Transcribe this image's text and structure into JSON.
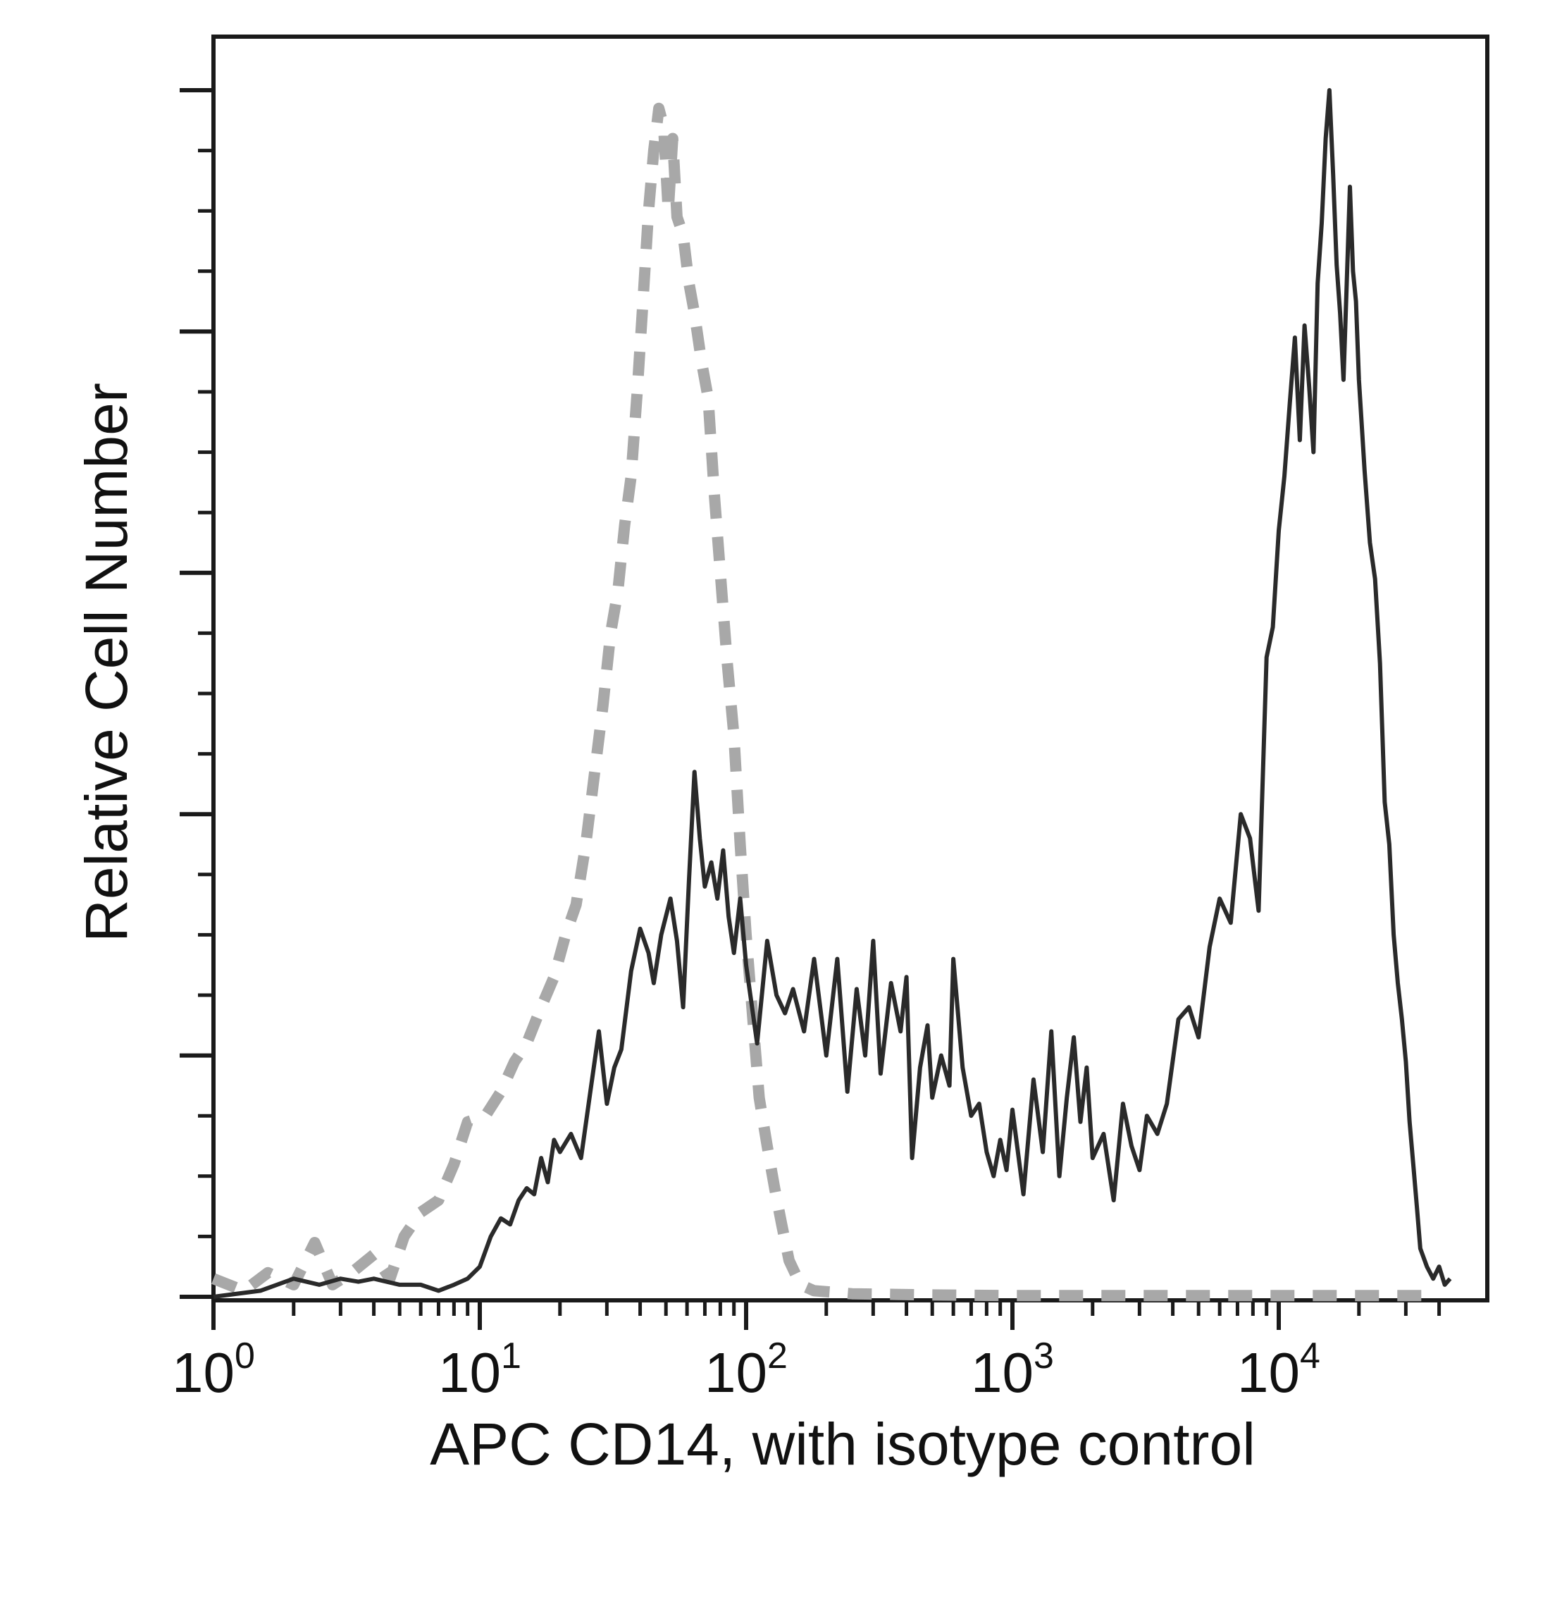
{
  "chart_data": {
    "type": "line",
    "title": "",
    "xlabel": "APC CD14, with isotype control",
    "ylabel": "Relative Cell Number",
    "x_scale": "log",
    "xlim": [
      1,
      45000
    ],
    "ylim": [
      0,
      21
    ],
    "x_ticks": [
      {
        "base": "10",
        "exp": "0",
        "value": 1
      },
      {
        "base": "10",
        "exp": "1",
        "value": 10
      },
      {
        "base": "10",
        "exp": "2",
        "value": 100
      },
      {
        "base": "10",
        "exp": "3",
        "value": 1000
      },
      {
        "base": "10",
        "exp": "4",
        "value": 10000
      }
    ],
    "y_ticks_labeled": false,
    "grid": false,
    "legend": "none",
    "series": [
      {
        "style": "dashed",
        "color": "#a8a8a8",
        "points": [
          [
            1.0,
            0.3
          ],
          [
            1.3,
            0.1
          ],
          [
            1.6,
            0.4
          ],
          [
            2.0,
            0.2
          ],
          [
            2.4,
            0.9
          ],
          [
            2.8,
            0.2
          ],
          [
            3.3,
            0.4
          ],
          [
            4.0,
            0.7
          ],
          [
            4.6,
            0.3
          ],
          [
            5.2,
            1.0
          ],
          [
            6.0,
            1.4
          ],
          [
            7.0,
            1.6
          ],
          [
            8.0,
            2.2
          ],
          [
            9.0,
            2.9
          ],
          [
            10.5,
            3.0
          ],
          [
            12.0,
            3.4
          ],
          [
            13.5,
            3.9
          ],
          [
            15.0,
            4.2
          ],
          [
            17.0,
            4.8
          ],
          [
            19.0,
            5.3
          ],
          [
            21.0,
            6.0
          ],
          [
            23.0,
            6.5
          ],
          [
            25.0,
            7.5
          ],
          [
            27.0,
            8.7
          ],
          [
            29.0,
            9.8
          ],
          [
            31.0,
            11.0
          ],
          [
            33.0,
            11.7
          ],
          [
            35.0,
            12.8
          ],
          [
            37.0,
            13.6
          ],
          [
            39.0,
            15.0
          ],
          [
            41.0,
            16.5
          ],
          [
            43.0,
            18.0
          ],
          [
            45.0,
            19.0
          ],
          [
            47.0,
            19.7
          ],
          [
            49.0,
            19.4
          ],
          [
            51.0,
            18.0
          ],
          [
            53.0,
            19.2
          ],
          [
            55.0,
            17.9
          ],
          [
            58.0,
            17.6
          ],
          [
            61.0,
            16.8
          ],
          [
            64.0,
            16.3
          ],
          [
            68.0,
            15.5
          ],
          [
            72.0,
            14.9
          ],
          [
            76.0,
            13.3
          ],
          [
            80.0,
            12.0
          ],
          [
            85.0,
            10.5
          ],
          [
            90.0,
            9.3
          ],
          [
            95.0,
            7.5
          ],
          [
            100.0,
            6.0
          ],
          [
            106.0,
            4.6
          ],
          [
            112.0,
            3.3
          ],
          [
            120.0,
            2.5
          ],
          [
            128.0,
            1.8
          ],
          [
            136.0,
            1.2
          ],
          [
            145.0,
            0.6
          ],
          [
            160.0,
            0.2
          ],
          [
            180.0,
            0.1
          ],
          [
            250.0,
            0.05
          ],
          [
            500.0,
            0.03
          ],
          [
            1000.0,
            0.02
          ],
          [
            3000.0,
            0.02
          ],
          [
            10000.0,
            0.02
          ],
          [
            40000.0,
            0.02
          ]
        ]
      },
      {
        "style": "solid",
        "color": "#2a2a2a",
        "points": [
          [
            1.0,
            0.0
          ],
          [
            1.5,
            0.1
          ],
          [
            2.0,
            0.3
          ],
          [
            2.5,
            0.2
          ],
          [
            3.0,
            0.3
          ],
          [
            3.5,
            0.25
          ],
          [
            4.0,
            0.3
          ],
          [
            5.0,
            0.2
          ],
          [
            6.0,
            0.2
          ],
          [
            7.0,
            0.1
          ],
          [
            8.0,
            0.2
          ],
          [
            9.0,
            0.3
          ],
          [
            10.0,
            0.5
          ],
          [
            11.0,
            1.0
          ],
          [
            12.0,
            1.3
          ],
          [
            13.0,
            1.2
          ],
          [
            14.0,
            1.6
          ],
          [
            15.0,
            1.8
          ],
          [
            16.0,
            1.7
          ],
          [
            17.0,
            2.3
          ],
          [
            18.0,
            1.9
          ],
          [
            19.0,
            2.6
          ],
          [
            20.0,
            2.4
          ],
          [
            22.0,
            2.7
          ],
          [
            24.0,
            2.3
          ],
          [
            26.0,
            3.4
          ],
          [
            28.0,
            4.4
          ],
          [
            30.0,
            3.2
          ],
          [
            32.0,
            3.8
          ],
          [
            34.0,
            4.1
          ],
          [
            37.0,
            5.4
          ],
          [
            40.0,
            6.1
          ],
          [
            43.0,
            5.7
          ],
          [
            45.0,
            5.2
          ],
          [
            48.0,
            6.0
          ],
          [
            52.0,
            6.6
          ],
          [
            55.0,
            5.9
          ],
          [
            58.0,
            4.8
          ],
          [
            61.0,
            6.9
          ],
          [
            64.0,
            8.7
          ],
          [
            67.0,
            7.6
          ],
          [
            70.0,
            6.8
          ],
          [
            74.0,
            7.2
          ],
          [
            78.0,
            6.6
          ],
          [
            82.0,
            7.4
          ],
          [
            86.0,
            6.3
          ],
          [
            90.0,
            5.7
          ],
          [
            95.0,
            6.6
          ],
          [
            100.0,
            5.5
          ],
          [
            110.0,
            4.2
          ],
          [
            120.0,
            5.9
          ],
          [
            130.0,
            5.0
          ],
          [
            140.0,
            4.7
          ],
          [
            150.0,
            5.1
          ],
          [
            165.0,
            4.4
          ],
          [
            180.0,
            5.6
          ],
          [
            200.0,
            4.0
          ],
          [
            220.0,
            5.6
          ],
          [
            240.0,
            3.4
          ],
          [
            260.0,
            5.1
          ],
          [
            280.0,
            4.0
          ],
          [
            300.0,
            5.9
          ],
          [
            320.0,
            3.7
          ],
          [
            350.0,
            5.2
          ],
          [
            380.0,
            4.4
          ],
          [
            400.0,
            5.3
          ],
          [
            420.0,
            2.3
          ],
          [
            450.0,
            3.8
          ],
          [
            480.0,
            4.5
          ],
          [
            500.0,
            3.3
          ],
          [
            540.0,
            4.0
          ],
          [
            580.0,
            3.5
          ],
          [
            600.0,
            5.6
          ],
          [
            650.0,
            3.8
          ],
          [
            700.0,
            3.0
          ],
          [
            750.0,
            3.2
          ],
          [
            800.0,
            2.4
          ],
          [
            850.0,
            2.0
          ],
          [
            900.0,
            2.6
          ],
          [
            950.0,
            2.1
          ],
          [
            1000.0,
            3.1
          ],
          [
            1100.0,
            1.7
          ],
          [
            1200.0,
            3.6
          ],
          [
            1300.0,
            2.4
          ],
          [
            1400.0,
            4.4
          ],
          [
            1500.0,
            2.0
          ],
          [
            1600.0,
            3.3
          ],
          [
            1700.0,
            4.3
          ],
          [
            1800.0,
            2.9
          ],
          [
            1900.0,
            3.8
          ],
          [
            2000.0,
            2.3
          ],
          [
            2200.0,
            2.7
          ],
          [
            2400.0,
            1.6
          ],
          [
            2600.0,
            3.2
          ],
          [
            2800.0,
            2.5
          ],
          [
            3000.0,
            2.1
          ],
          [
            3200.0,
            3.0
          ],
          [
            3500.0,
            2.7
          ],
          [
            3800.0,
            3.2
          ],
          [
            4200.0,
            4.6
          ],
          [
            4600.0,
            4.8
          ],
          [
            5000.0,
            4.3
          ],
          [
            5500.0,
            5.8
          ],
          [
            6000.0,
            6.6
          ],
          [
            6600.0,
            6.2
          ],
          [
            7200.0,
            8.0
          ],
          [
            7800.0,
            7.6
          ],
          [
            8400.0,
            6.4
          ],
          [
            9000.0,
            10.6
          ],
          [
            9500.0,
            11.1
          ],
          [
            10000.0,
            12.7
          ],
          [
            10500.0,
            13.6
          ],
          [
            11000.0,
            14.8
          ],
          [
            11500.0,
            15.9
          ],
          [
            12000.0,
            14.2
          ],
          [
            12500.0,
            16.1
          ],
          [
            13000.0,
            15.1
          ],
          [
            13500.0,
            14.0
          ],
          [
            14000.0,
            16.8
          ],
          [
            14500.0,
            17.8
          ],
          [
            15000.0,
            19.2
          ],
          [
            15500.0,
            20.0
          ],
          [
            16000.0,
            18.6
          ],
          [
            16500.0,
            17.1
          ],
          [
            17000.0,
            16.3
          ],
          [
            17500.0,
            15.2
          ],
          [
            18000.0,
            16.8
          ],
          [
            18500.0,
            18.4
          ],
          [
            19000.0,
            17.0
          ],
          [
            19500.0,
            16.5
          ],
          [
            20000.0,
            15.2
          ],
          [
            21000.0,
            13.7
          ],
          [
            22000.0,
            12.5
          ],
          [
            23000.0,
            11.9
          ],
          [
            24000.0,
            10.5
          ],
          [
            25000.0,
            8.2
          ],
          [
            26000.0,
            7.5
          ],
          [
            27000.0,
            6.0
          ],
          [
            28000.0,
            5.2
          ],
          [
            29000.0,
            4.6
          ],
          [
            30000.0,
            3.9
          ],
          [
            31000.0,
            2.9
          ],
          [
            32000.0,
            2.2
          ],
          [
            33000.0,
            1.5
          ],
          [
            34000.0,
            0.8
          ],
          [
            36000.0,
            0.5
          ],
          [
            38000.0,
            0.3
          ],
          [
            40000.0,
            0.5
          ],
          [
            42000.0,
            0.2
          ],
          [
            44000.0,
            0.3
          ]
        ]
      }
    ]
  }
}
